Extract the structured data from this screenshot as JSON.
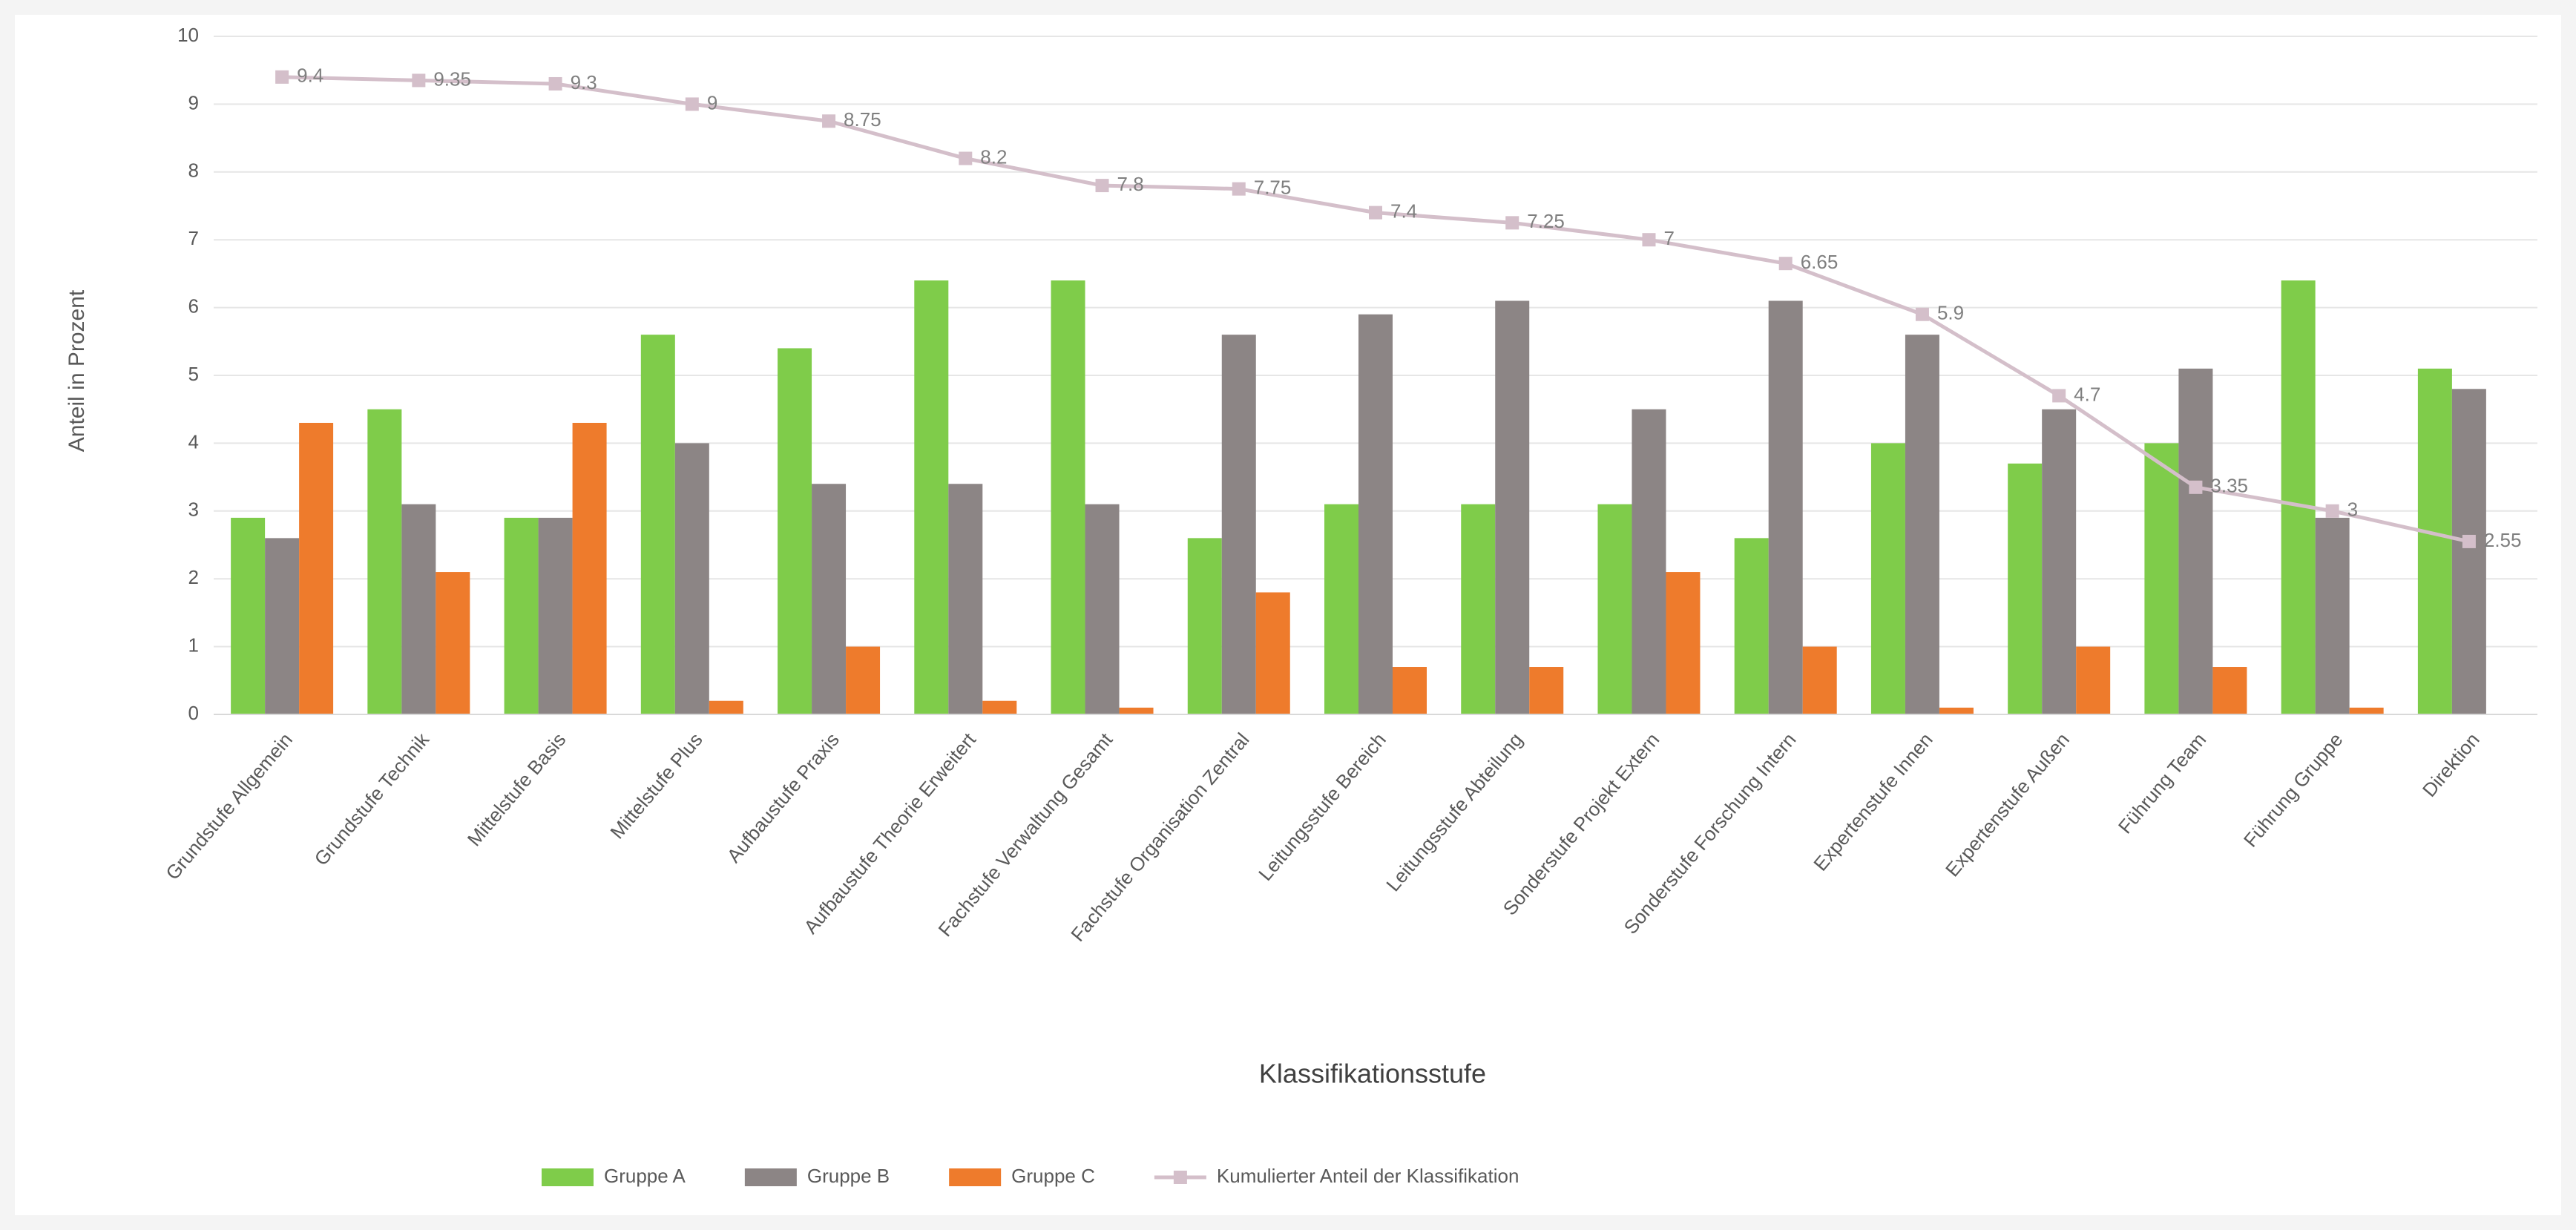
{
  "chart_data": {
    "type": "bar-line",
    "x_label": "Klassifikationsstufe",
    "y_label": "Anteil in Prozent",
    "categories": [
      "Grundstufe Allgemein",
      "Grundstufe Technik",
      "Mittelstufe Basis",
      "Mittelstufe Plus",
      "Aufbaustufe Praxis",
      "Aufbaustufe Theorie Erweitert",
      "Fachstufe Verwaltung Gesamt",
      "Fachstufe Organisation Zentral",
      "Leitungsstufe Bereich",
      "Leitungsstufe Abteilung",
      "Sonderstufe Projekt Extern",
      "Sonderstufe Forschung Intern",
      "Expertenstufe Innen",
      "Expertenstufe Außen",
      "Führung Team",
      "Führung Gruppe",
      "Direktion"
    ],
    "series": [
      {
        "name": "Gruppe A",
        "color": "#7fcc4a",
        "values": [
          2.9,
          4.5,
          2.9,
          5.6,
          5.4,
          6.4,
          6.4,
          2.6,
          3.1,
          3.1,
          3.1,
          2.6,
          4.0,
          3.7,
          4.0,
          6.4,
          5.1
        ]
      },
      {
        "name": "Gruppe B",
        "color": "#8c8585",
        "values": [
          2.6,
          3.1,
          2.9,
          4.0,
          3.4,
          3.4,
          3.1,
          5.6,
          5.9,
          6.1,
          4.5,
          6.1,
          5.6,
          4.5,
          5.1,
          2.9,
          4.8
        ]
      },
      {
        "name": "Gruppe C",
        "color": "#ee7b2c",
        "values": [
          4.3,
          2.1,
          4.3,
          0.2,
          1.0,
          0.2,
          0.1,
          1.8,
          0.7,
          0.7,
          2.1,
          1.0,
          0.1,
          1.0,
          0.7,
          0.1,
          0
        ]
      },
      {
        "name": "Kumulierter Anteil der Klassifikation",
        "color": "#d4bfca",
        "line": true,
        "values": [
          9.4,
          9.35,
          9.3,
          9.0,
          8.75,
          8.2,
          7.8,
          7.75,
          7.4,
          7.25,
          7.0,
          6.65,
          5.9,
          4.7,
          3.35,
          3.0,
          2.55
        ]
      }
    ],
    "ylim": [
      0,
      10
    ],
    "yticks": [
      0,
      1,
      2,
      3,
      4,
      5,
      6,
      7,
      8,
      9,
      10
    ],
    "grid": true
  }
}
